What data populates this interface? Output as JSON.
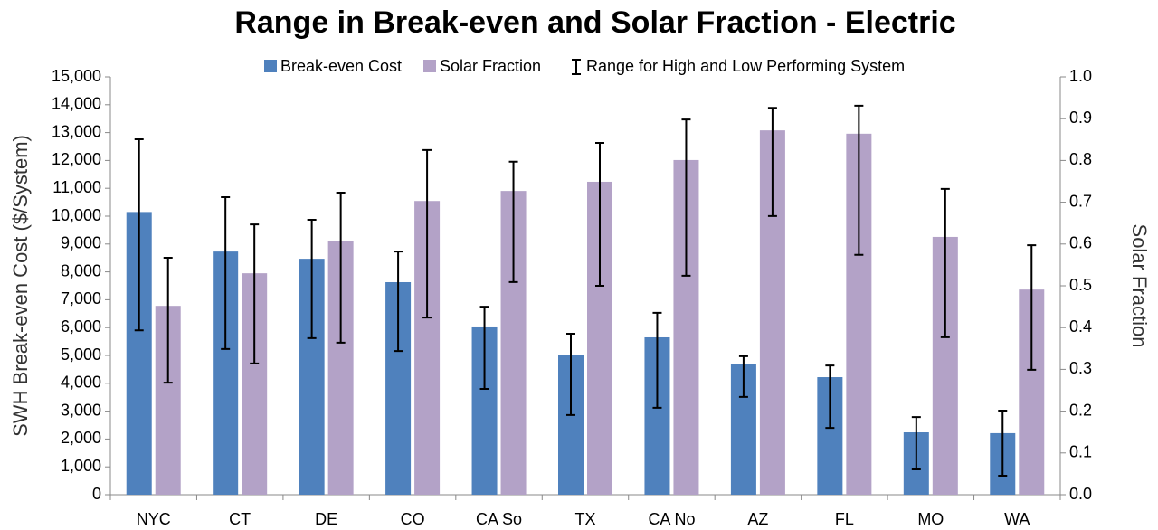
{
  "chart_data": {
    "type": "bar",
    "title": "Range in Break-even and Solar Fraction - Electric",
    "ylabel": "SWH Break-even Cost ($/System)",
    "y2label": "Solar Fraction",
    "error_bar_label": "Range for High and Low Performing System",
    "categories": [
      "NYC",
      "CT",
      "DE",
      "CO",
      "CA So",
      "TX",
      "CA No",
      "AZ",
      "FL",
      "MO",
      "WA"
    ],
    "series": [
      {
        "name": "Break-even Cost",
        "color": "#4f81bd",
        "values": [
          10150,
          8730,
          8470,
          7630,
          6040,
          5000,
          5650,
          4680,
          4220,
          2240,
          2210
        ],
        "high": [
          12760,
          10680,
          9870,
          8730,
          6750,
          5780,
          6530,
          4970,
          4640,
          2790,
          3020
        ],
        "low": [
          5900,
          5230,
          5620,
          5160,
          3800,
          2860,
          3120,
          3510,
          2400,
          910,
          680
        ]
      },
      {
        "name": "Solar Fraction",
        "color": "#b3a2c7",
        "axis": "y2",
        "values": [
          0.452,
          0.53,
          0.608,
          0.703,
          0.727,
          0.749,
          0.801,
          0.872,
          0.864,
          0.617,
          0.491
        ],
        "high": [
          0.567,
          0.647,
          0.723,
          0.825,
          0.797,
          0.842,
          0.898,
          0.926,
          0.931,
          0.732,
          0.597
        ],
        "low": [
          0.268,
          0.314,
          0.364,
          0.424,
          0.509,
          0.5,
          0.524,
          0.667,
          0.574,
          0.377,
          0.299
        ]
      }
    ],
    "ylim": [
      0,
      15000
    ],
    "yticks": [
      0,
      {
        "value": 1000,
        "label": "1,000"
      },
      {
        "value": 2000,
        "label": "2,000"
      },
      {
        "value": 3000,
        "label": "3,000"
      },
      {
        "value": 4000,
        "label": "4,000"
      },
      {
        "value": 5000,
        "label": "5,000"
      },
      {
        "value": 6000,
        "label": "6,000"
      },
      {
        "value": 7000,
        "label": "7,000"
      },
      {
        "value": 8000,
        "label": "8,000"
      },
      {
        "value": 9000,
        "label": "9,000"
      },
      {
        "value": 10000,
        "label": "10,000"
      },
      {
        "value": 11000,
        "label": "11,000"
      },
      {
        "value": 12000,
        "label": "12,000"
      },
      {
        "value": 13000,
        "label": "13,000"
      },
      {
        "value": 14000,
        "label": "14,000"
      },
      {
        "value": 15000,
        "label": "15,000"
      }
    ],
    "y2lim": [
      0,
      1
    ],
    "y2ticks": [
      {
        "value": 0,
        "label": "0.0"
      },
      0.1,
      0.2,
      0.3,
      0.4,
      0.5,
      0.6,
      0.7,
      0.8,
      0.9,
      {
        "value": 1,
        "label": "1.0"
      }
    ],
    "legend": "top",
    "grid": false
  }
}
